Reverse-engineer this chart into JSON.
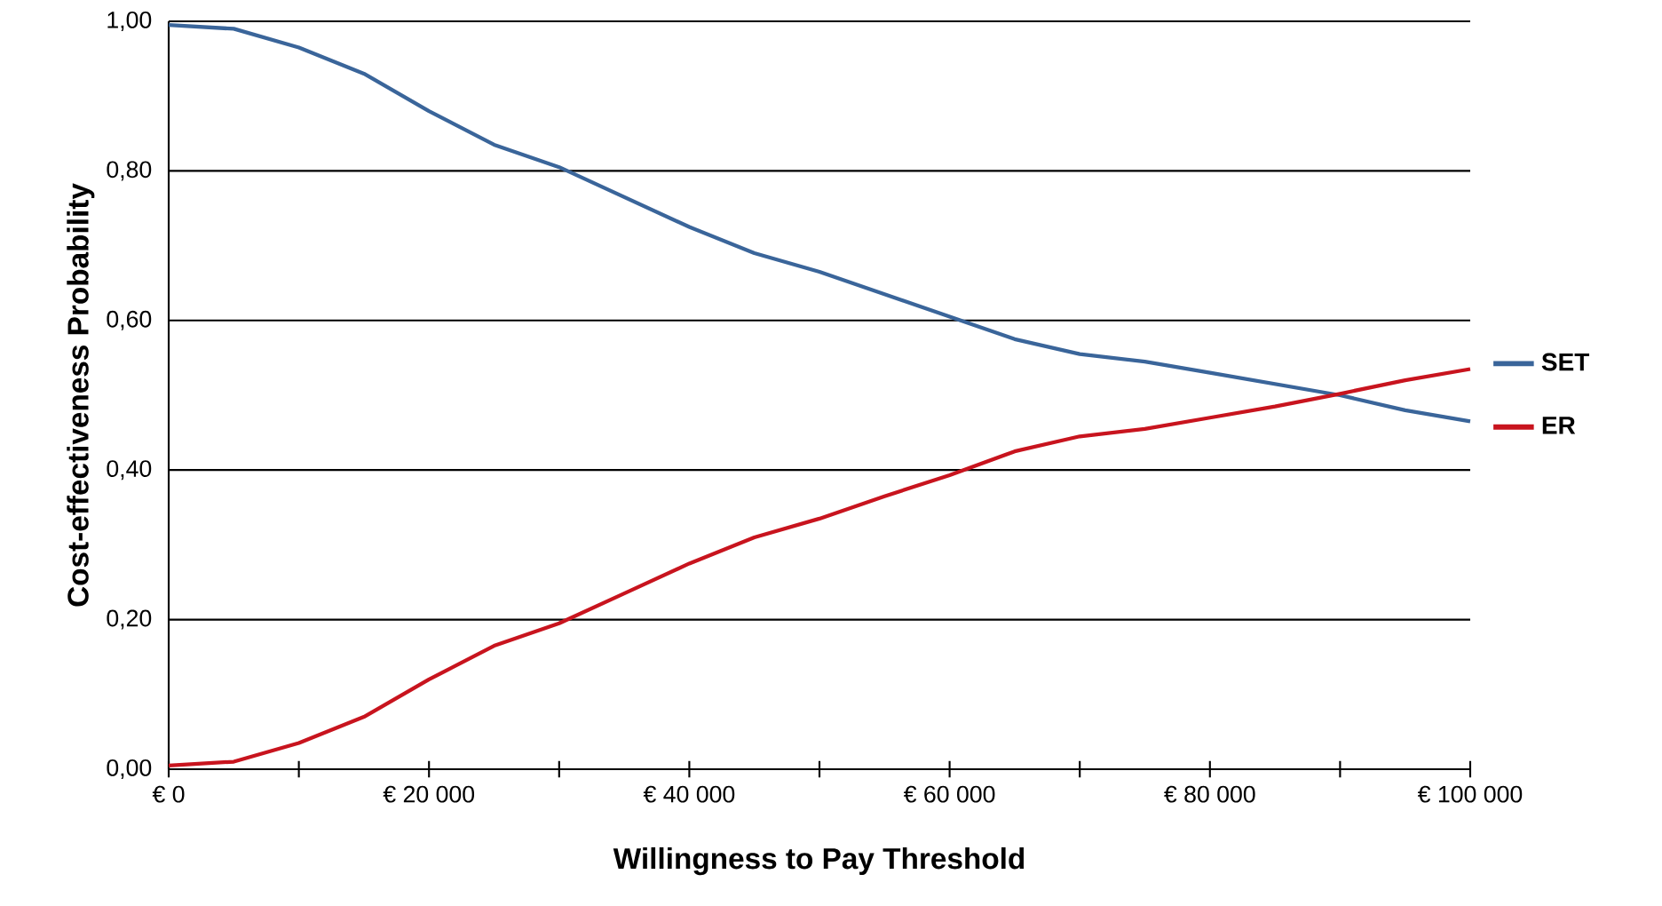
{
  "chart_data": {
    "type": "line",
    "xlabel": "Willingness to Pay Threshold",
    "ylabel": "Cost-effectiveness Probability",
    "x": [
      0,
      5000,
      10000,
      15000,
      20000,
      25000,
      30000,
      35000,
      40000,
      45000,
      50000,
      55000,
      60000,
      65000,
      70000,
      75000,
      80000,
      85000,
      90000,
      95000,
      100000
    ],
    "series": [
      {
        "name": "SET",
        "color": "#3a659a",
        "values": [
          0.995,
          0.99,
          0.965,
          0.93,
          0.88,
          0.835,
          0.805,
          0.765,
          0.725,
          0.69,
          0.665,
          0.635,
          0.605,
          0.575,
          0.555,
          0.545,
          0.53,
          0.515,
          0.5,
          0.48,
          0.465
        ]
      },
      {
        "name": "ER",
        "color": "#c8141e",
        "values": [
          0.005,
          0.01,
          0.035,
          0.07,
          0.12,
          0.165,
          0.195,
          0.235,
          0.275,
          0.31,
          0.335,
          0.365,
          0.393,
          0.425,
          0.445,
          0.455,
          0.47,
          0.485,
          0.502,
          0.52,
          0.535
        ]
      }
    ],
    "xlim": [
      0,
      100000
    ],
    "xticks": [
      {
        "value": 0,
        "label": "€ 0"
      },
      {
        "value": 10000,
        "label": null
      },
      {
        "value": 20000,
        "label": "€ 20 000"
      },
      {
        "value": 30000,
        "label": null
      },
      {
        "value": 40000,
        "label": "€ 40 000"
      },
      {
        "value": 50000,
        "label": null
      },
      {
        "value": 60000,
        "label": "€ 60 000"
      },
      {
        "value": 70000,
        "label": null
      },
      {
        "value": 80000,
        "label": "€ 80 000"
      },
      {
        "value": 90000,
        "label": null
      },
      {
        "value": 100000,
        "label": "€ 100 000"
      }
    ],
    "ylim": [
      0,
      1
    ],
    "yticks": [
      {
        "value": 0,
        "label": "0,00"
      },
      {
        "value": 0.2,
        "label": "0,20"
      },
      {
        "value": 0.4,
        "label": "0,40"
      },
      {
        "value": 0.6,
        "label": "0,60"
      },
      {
        "value": 0.8,
        "label": "0,80"
      },
      {
        "value": 1,
        "label": "1,00"
      }
    ],
    "grid": "y",
    "legend": "right"
  }
}
